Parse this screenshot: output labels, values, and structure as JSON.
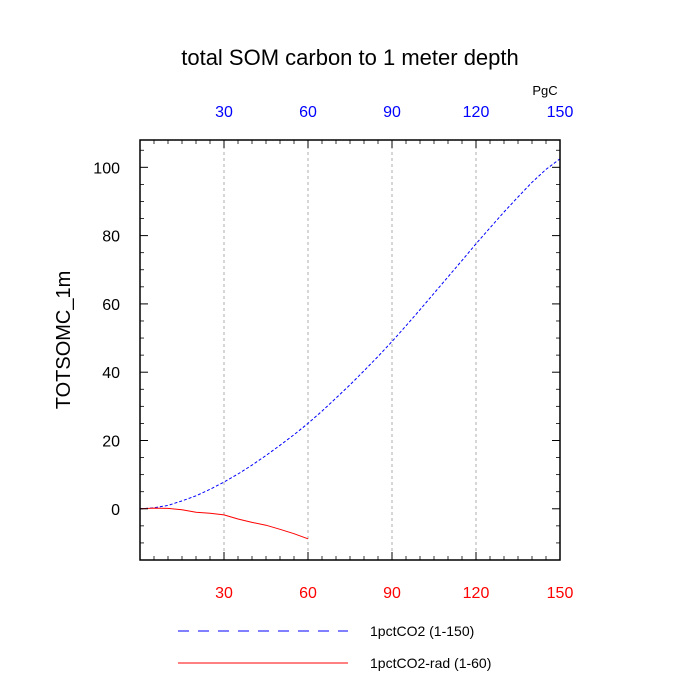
{
  "chart_data": {
    "type": "line",
    "title": "total SOM carbon to 1 meter depth",
    "ylabel": "TOTSOMC_1m",
    "units": "PgC",
    "xlim": [
      0,
      150
    ],
    "ylim": [
      -15,
      108
    ],
    "x_ticks_top": [
      "30",
      "60",
      "90",
      "120",
      "150"
    ],
    "x_ticks_bottom": [
      "30",
      "60",
      "90",
      "120",
      "150"
    ],
    "y_ticks": [
      "0",
      "20",
      "40",
      "60",
      "80",
      "100"
    ],
    "grid": "vertical dashed at major x ticks",
    "top_axis_color": "#0000ff",
    "bottom_axis_color": "#ff0000",
    "legend_position": "bottom-center",
    "series": [
      {
        "name": "1pctCO2 (1-150)",
        "color": "#0000ff",
        "style": "dashed",
        "x": [
          0,
          5,
          10,
          15,
          20,
          25,
          30,
          35,
          40,
          45,
          50,
          55,
          60,
          65,
          70,
          75,
          80,
          85,
          90,
          95,
          100,
          105,
          110,
          115,
          120,
          125,
          130,
          135,
          140,
          145,
          150
        ],
        "y": [
          0,
          0.3,
          1,
          2.3,
          3.8,
          5.7,
          7.8,
          10.2,
          12.8,
          15.6,
          18.6,
          21.7,
          25,
          28.6,
          32.4,
          36.3,
          40.4,
          44.6,
          49,
          53.6,
          58.3,
          63.1,
          67.9,
          72.7,
          77.6,
          82.3,
          86.9,
          91.3,
          95.6,
          99.4,
          102.5
        ]
      },
      {
        "name": "1pctCO2-rad (1-60)",
        "color": "#ff0000",
        "style": "solid",
        "x": [
          0,
          5,
          10,
          15,
          20,
          25,
          30,
          35,
          40,
          45,
          50,
          55,
          60
        ],
        "y": [
          0,
          0.2,
          0.1,
          -0.3,
          -1.0,
          -1.3,
          -1.8,
          -3.0,
          -4.0,
          -4.8,
          -6.0,
          -7.3,
          -8.8
        ]
      }
    ]
  }
}
